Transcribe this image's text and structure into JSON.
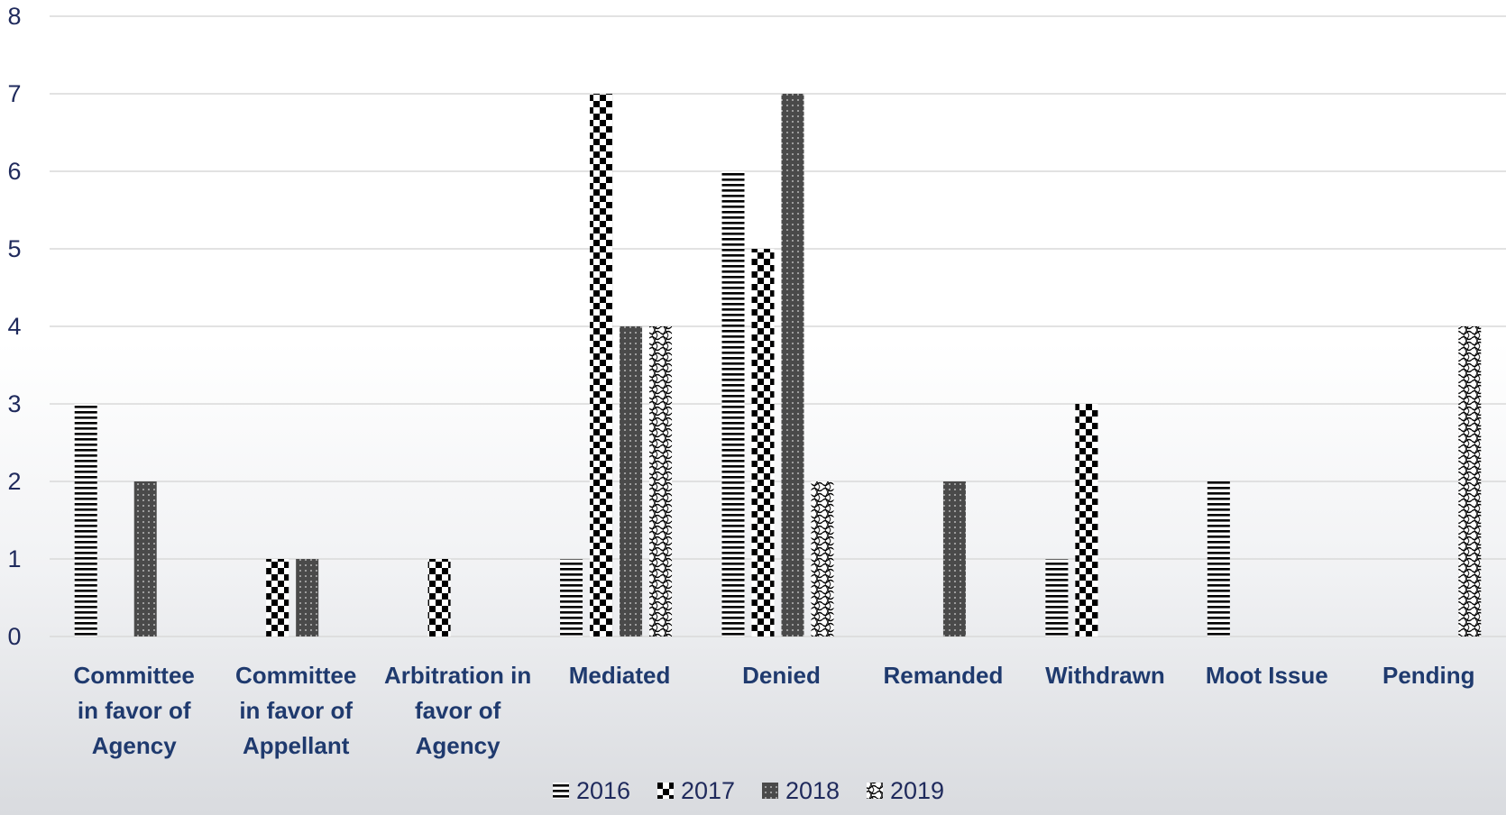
{
  "chart_data": {
    "type": "bar",
    "title": "",
    "xlabel": "",
    "ylabel": "",
    "ylim": [
      0,
      8
    ],
    "yticks": [
      0,
      1,
      2,
      3,
      4,
      5,
      6,
      7,
      8
    ],
    "grid": true,
    "legend_position": "bottom",
    "categories": [
      "Committee in favor of Agency",
      "Committee in favor of Appellant",
      "Arbitration in favor of Agency",
      "Mediated",
      "Denied",
      "Remanded",
      "Withdrawn",
      "Moot Issue",
      "Pending"
    ],
    "category_lines": [
      [
        "Committee",
        "in favor of",
        "Agency"
      ],
      [
        "Committee",
        "in favor of",
        "Appellant"
      ],
      [
        "Arbitration in",
        "favor of",
        "Agency"
      ],
      [
        "Mediated"
      ],
      [
        "Denied"
      ],
      [
        "Remanded"
      ],
      [
        "Withdrawn"
      ],
      [
        "Moot Issue"
      ],
      [
        "Pending"
      ]
    ],
    "series": [
      {
        "name": "2016",
        "pattern": "horizontal-lines",
        "values": [
          3,
          0,
          0,
          1,
          6,
          0,
          1,
          2,
          0
        ]
      },
      {
        "name": "2017",
        "pattern": "checkerboard",
        "values": [
          0,
          1,
          1,
          7,
          5,
          0,
          3,
          0,
          0
        ]
      },
      {
        "name": "2018",
        "pattern": "dotted-dark",
        "values": [
          2,
          1,
          0,
          4,
          7,
          2,
          0,
          0,
          0
        ]
      },
      {
        "name": "2019",
        "pattern": "wave",
        "values": [
          0,
          0,
          0,
          4,
          2,
          0,
          0,
          0,
          4
        ]
      }
    ]
  },
  "colors": {
    "axis_text": "#1f2a5c",
    "category_text": "#1f3a6e",
    "gridline": "#d9d9d9"
  }
}
